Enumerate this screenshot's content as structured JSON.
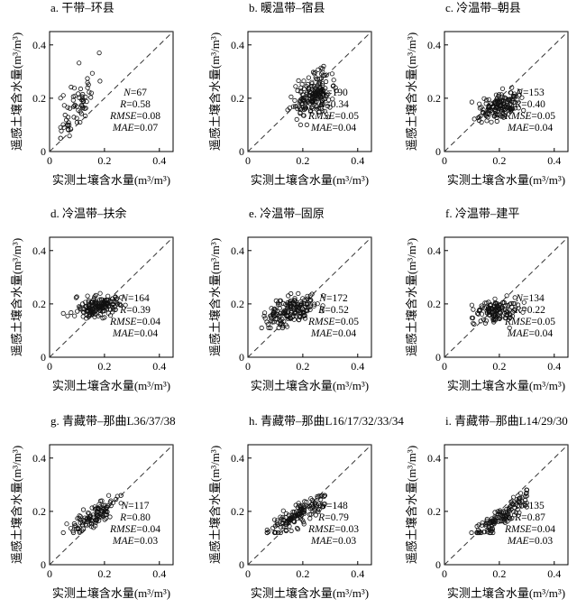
{
  "axes": {
    "xlabel": "实测土壤含水量(m³/m³)",
    "ylabel": "遥感土壤含水量(m³/m³)",
    "ticks": [
      0,
      0.2,
      0.4
    ],
    "tick_labels": [
      "0",
      "0.2",
      "0.4"
    ],
    "lim": [
      0,
      0.45
    ]
  },
  "chart_data": [
    {
      "type": "scatter",
      "title": "a. 干带–环县",
      "stats": {
        "N": "67",
        "R": "0.58",
        "RMSE": "0.08",
        "MAE": "0.07"
      },
      "cx": 0.1,
      "cy": 0.18,
      "sx": 0.035,
      "sy": 0.065,
      "rho": 0.58,
      "xmin": 0.04,
      "xmax": 0.2,
      "ymin": 0.05,
      "ymax": 0.37,
      "seed": 11
    },
    {
      "type": "scatter",
      "title": "b. 暖温带–宿县",
      "stats": {
        "N": "190",
        "R": "0.34",
        "RMSE": "0.05",
        "MAE": "0.04"
      },
      "cx": 0.24,
      "cy": 0.21,
      "sx": 0.032,
      "sy": 0.04,
      "rho": 0.34,
      "xmin": 0.12,
      "xmax": 0.33,
      "ymin": 0.1,
      "ymax": 0.34,
      "seed": 22
    },
    {
      "type": "scatter",
      "title": "c. 冷温带–朝县",
      "stats": {
        "N": "153",
        "R": "0.40",
        "RMSE": "0.05",
        "MAE": "0.04"
      },
      "cx": 0.2,
      "cy": 0.17,
      "sx": 0.038,
      "sy": 0.025,
      "rho": 0.4,
      "xmin": 0.1,
      "xmax": 0.3,
      "ymin": 0.11,
      "ymax": 0.24,
      "seed": 33
    },
    {
      "type": "scatter",
      "title": "d. 冷温带–扶余",
      "stats": {
        "N": "164",
        "R": "0.39",
        "RMSE": "0.04",
        "MAE": "0.04"
      },
      "cx": 0.18,
      "cy": 0.19,
      "sx": 0.045,
      "sy": 0.022,
      "rho": 0.39,
      "xmin": 0.05,
      "xmax": 0.3,
      "ymin": 0.14,
      "ymax": 0.27,
      "seed": 44
    },
    {
      "type": "scatter",
      "title": "e. 冷温带–固原",
      "stats": {
        "N": "172",
        "R": "0.52",
        "RMSE": "0.05",
        "MAE": "0.04"
      },
      "cx": 0.15,
      "cy": 0.17,
      "sx": 0.05,
      "sy": 0.03,
      "rho": 0.52,
      "xmin": 0.05,
      "xmax": 0.29,
      "ymin": 0.11,
      "ymax": 0.27,
      "seed": 55
    },
    {
      "type": "scatter",
      "title": "f. 冷温带–建平",
      "stats": {
        "N": "134",
        "R": "0.22",
        "RMSE": "0.05",
        "MAE": "0.04"
      },
      "cx": 0.19,
      "cy": 0.17,
      "sx": 0.04,
      "sy": 0.022,
      "rho": 0.22,
      "xmin": 0.1,
      "xmax": 0.29,
      "ymin": 0.11,
      "ymax": 0.26,
      "seed": 66
    },
    {
      "type": "scatter",
      "title": "g. 青藏带–那曲L36/37/38",
      "stats": {
        "N": "117",
        "R": "0.80",
        "RMSE": "0.04",
        "MAE": "0.03"
      },
      "cx": 0.16,
      "cy": 0.18,
      "sx": 0.05,
      "sy": 0.035,
      "rho": 0.8,
      "xmin": 0.05,
      "xmax": 0.26,
      "ymin": 0.12,
      "ymax": 0.26,
      "seed": 77
    },
    {
      "type": "scatter",
      "title": "h. 青藏带–那曲L16/17/32/33/34",
      "stats": {
        "N": "148",
        "R": "0.79",
        "RMSE": "0.03",
        "MAE": "0.03"
      },
      "cx": 0.19,
      "cy": 0.19,
      "sx": 0.05,
      "sy": 0.035,
      "rho": 0.79,
      "xmin": 0.07,
      "xmax": 0.28,
      "ymin": 0.12,
      "ymax": 0.26,
      "seed": 88
    },
    {
      "type": "scatter",
      "title": "i. 青藏带–那曲L14/29/30",
      "stats": {
        "N": "135",
        "R": "0.87",
        "RMSE": "0.04",
        "MAE": "0.03"
      },
      "cx": 0.22,
      "cy": 0.19,
      "sx": 0.055,
      "sy": 0.042,
      "rho": 0.87,
      "xmin": 0.08,
      "xmax": 0.3,
      "ymin": 0.12,
      "ymax": 0.28,
      "seed": 99
    }
  ]
}
